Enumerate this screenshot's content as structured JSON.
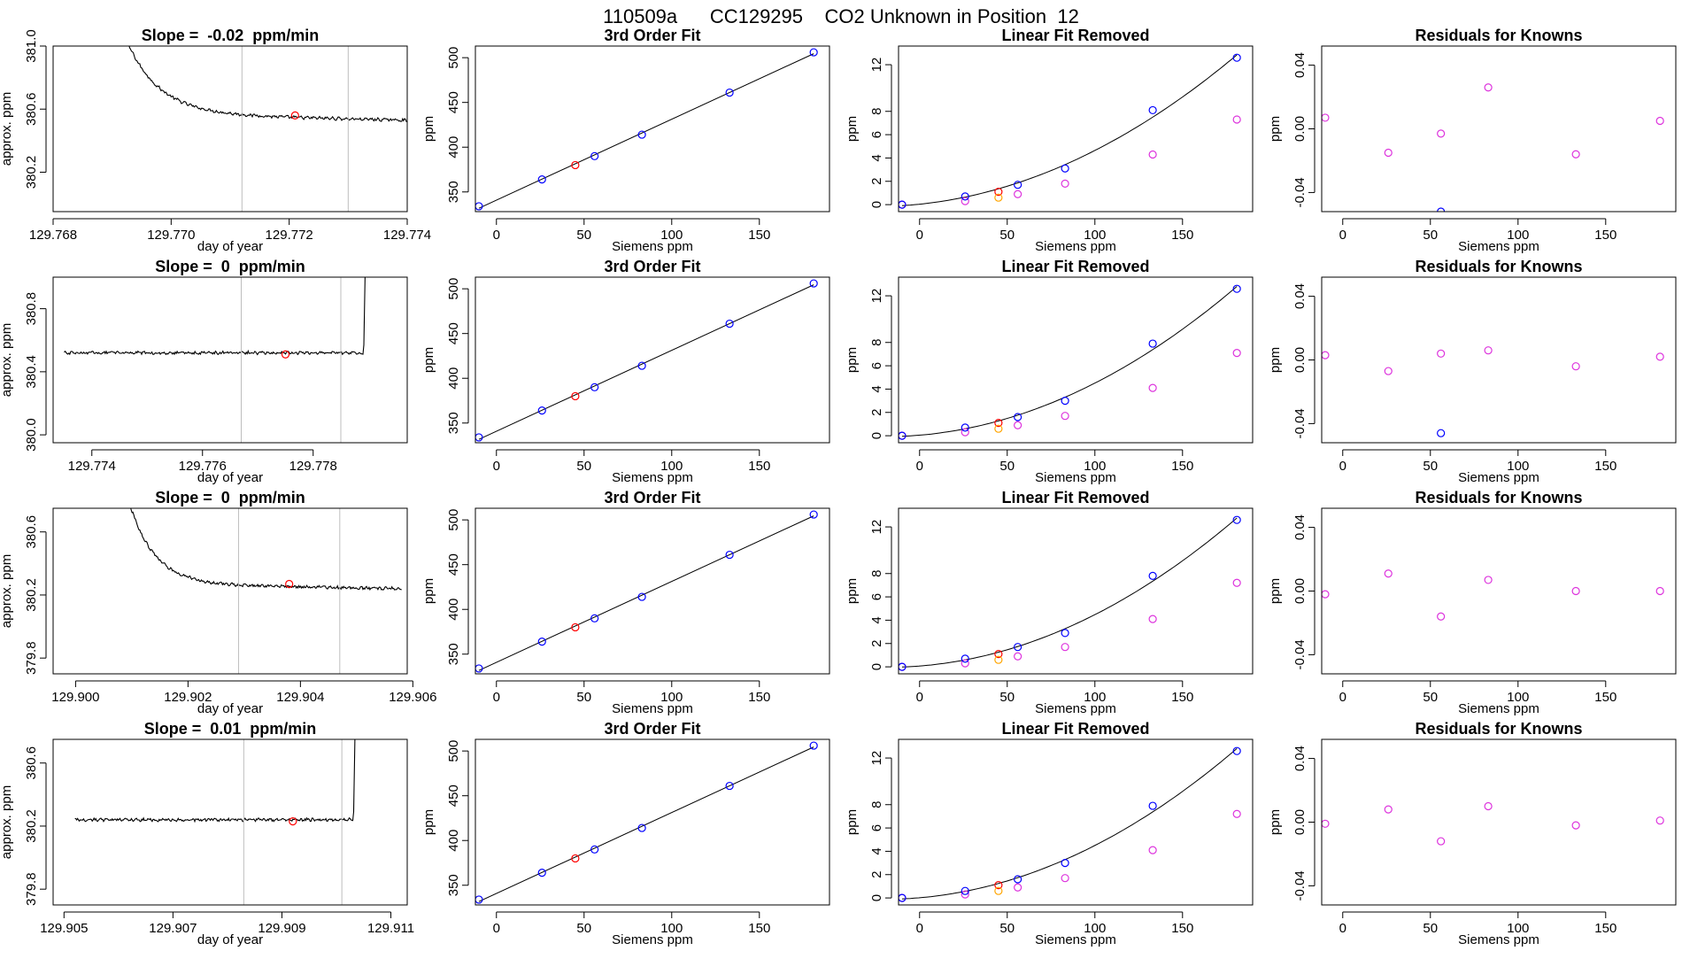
{
  "page_title": "110509a      CC129295    CO2 Unknown in Position  12",
  "colors": {
    "axis": "#000000",
    "trace": "#000000",
    "vline": "#bebebe",
    "blue": "#0000ff",
    "red": "#ff0000",
    "orange": "#ffa500",
    "magenta": "#dd33dd",
    "fit": "#000000"
  },
  "chart_data": [
    {
      "type": "line",
      "kind": "trace",
      "title": "Slope =  -0.02  ppm/min",
      "xlabel": "day of year",
      "ylabel": "approx. ppm",
      "xlim": [
        129.768,
        129.774
      ],
      "ylim": [
        379.95,
        381.0
      ],
      "xticks": [
        129.768,
        129.77,
        129.772,
        129.774
      ],
      "xtick_labels": [
        "129.768",
        "129.770",
        "129.772",
        "129.774"
      ],
      "yticks": [
        380.2,
        380.6,
        381.0
      ],
      "ytick_labels": [
        "380.2",
        "380.6",
        "381.0"
      ],
      "trace": {
        "x_start": 129.769,
        "x_end": 129.774,
        "decay_from": 381.3,
        "level": 380.57,
        "tau": 0.00055,
        "end_level": 380.53,
        "noise": 0.008,
        "spike_to": null
      },
      "vlines": [
        129.7712,
        129.773
      ],
      "marker": {
        "x": 129.7721,
        "y": 380.56
      }
    },
    {
      "type": "scatter",
      "kind": "fit3",
      "title": "3rd Order Fit",
      "xlabel": "Siemens ppm",
      "ylabel": "ppm",
      "xlim": [
        -12,
        190
      ],
      "ylim": [
        328,
        513
      ],
      "xticks": [
        0,
        50,
        100,
        150
      ],
      "yticks": [
        350,
        400,
        450,
        500
      ],
      "knowns": {
        "x": [
          -10,
          26,
          56,
          83,
          133,
          181
        ],
        "y": [
          334,
          364,
          390,
          414,
          461,
          506
        ]
      },
      "unknown": {
        "x": 45,
        "y": 380
      }
    },
    {
      "type": "scatter",
      "kind": "linfit",
      "title": "Linear Fit Removed",
      "xlabel": "Siemens ppm",
      "ylabel": "ppm",
      "xlim": [
        -12,
        190
      ],
      "ylim": [
        -0.6,
        13.6
      ],
      "xticks": [
        0,
        50,
        100,
        150
      ],
      "yticks": [
        0,
        2,
        4,
        6,
        8,
        12
      ],
      "knowns": {
        "x": [
          -10,
          26,
          56,
          83,
          133,
          181
        ],
        "y": [
          0.0,
          0.7,
          1.7,
          3.1,
          8.1,
          12.6
        ]
      },
      "removed": {
        "x": [
          -10,
          26,
          56,
          83,
          133,
          181
        ],
        "y": [
          0.0,
          0.3,
          0.9,
          1.8,
          4.3,
          7.3
        ]
      },
      "unknown": {
        "x": 45,
        "y": 1.1
      },
      "unknown_removed": {
        "x": 45,
        "y": 0.6
      }
    },
    {
      "type": "scatter",
      "kind": "resid",
      "title": "Residuals for Knowns",
      "xlabel": "Siemens ppm",
      "ylabel": "ppm",
      "xlim": [
        -12,
        190
      ],
      "ylim": [
        -0.052,
        0.052
      ],
      "xticks": [
        0,
        50,
        100,
        150
      ],
      "yticks": [
        -0.04,
        0.0,
        0.04
      ],
      "ytick_labels": [
        "-0.04",
        "0.00",
        "0.04"
      ],
      "resid": {
        "x": [
          -10,
          26,
          56,
          83,
          133,
          181
        ],
        "y": [
          0.007,
          -0.015,
          -0.003,
          0.026,
          -0.016,
          0.005
        ]
      },
      "resid_blue": {
        "x": [
          56
        ],
        "y": [
          -0.052
        ]
      }
    },
    {
      "type": "line",
      "kind": "trace",
      "title": "Slope =  0  ppm/min",
      "xlabel": "day of year",
      "ylabel": "approx. ppm",
      "xlim": [
        129.7733,
        129.7797
      ],
      "ylim": [
        379.95,
        381.0
      ],
      "xticks": [
        129.774,
        129.776,
        129.778
      ],
      "xtick_labels": [
        "129.774",
        "129.776",
        "129.778"
      ],
      "yticks": [
        380.0,
        380.4,
        380.8
      ],
      "ytick_labels": [
        "380.0",
        "380.4",
        "380.8"
      ],
      "trace": {
        "x_start": 129.7735,
        "x_end": 129.7789,
        "decay_from": null,
        "level": 380.52,
        "tau": 0.0005,
        "end_level": 380.52,
        "noise": 0.008,
        "spike_to": 381.2
      },
      "vlines": [
        129.7767,
        129.7785
      ],
      "marker": {
        "x": 129.7775,
        "y": 380.51
      }
    },
    {
      "type": "scatter",
      "kind": "fit3",
      "title": "3rd Order Fit",
      "xlabel": "Siemens ppm",
      "ylabel": "ppm",
      "xlim": [
        -12,
        190
      ],
      "ylim": [
        328,
        513
      ],
      "xticks": [
        0,
        50,
        100,
        150
      ],
      "yticks": [
        350,
        400,
        450,
        500
      ],
      "knowns": {
        "x": [
          -10,
          26,
          56,
          83,
          133,
          181
        ],
        "y": [
          334,
          364,
          390,
          414,
          461,
          506
        ]
      },
      "unknown": {
        "x": 45,
        "y": 380
      }
    },
    {
      "type": "scatter",
      "kind": "linfit",
      "title": "Linear Fit Removed",
      "xlabel": "Siemens ppm",
      "ylabel": "ppm",
      "xlim": [
        -12,
        190
      ],
      "ylim": [
        -0.6,
        13.6
      ],
      "xticks": [
        0,
        50,
        100,
        150
      ],
      "yticks": [
        0,
        2,
        4,
        6,
        8,
        12
      ],
      "knowns": {
        "x": [
          -10,
          26,
          56,
          83,
          133,
          181
        ],
        "y": [
          0.0,
          0.7,
          1.6,
          3.0,
          7.9,
          12.6
        ]
      },
      "removed": {
        "x": [
          -10,
          26,
          56,
          83,
          133,
          181
        ],
        "y": [
          0.0,
          0.3,
          0.9,
          1.7,
          4.1,
          7.1
        ]
      },
      "unknown": {
        "x": 45,
        "y": 1.1
      },
      "unknown_removed": {
        "x": 45,
        "y": 0.6
      }
    },
    {
      "type": "scatter",
      "kind": "resid",
      "title": "Residuals for Knowns",
      "xlabel": "Siemens ppm",
      "ylabel": "ppm",
      "xlim": [
        -12,
        190
      ],
      "ylim": [
        -0.052,
        0.052
      ],
      "xticks": [
        0,
        50,
        100,
        150
      ],
      "yticks": [
        -0.04,
        0.0,
        0.04
      ],
      "ytick_labels": [
        "-0.04",
        "0.00",
        "0.04"
      ],
      "resid": {
        "x": [
          -10,
          26,
          56,
          83,
          133,
          181
        ],
        "y": [
          0.003,
          -0.007,
          0.004,
          0.006,
          -0.004,
          0.002
        ]
      },
      "resid_blue": {
        "x": [
          56
        ],
        "y": [
          -0.046
        ]
      }
    },
    {
      "type": "line",
      "kind": "trace",
      "title": "Slope =  0  ppm/min",
      "xlabel": "day of year",
      "ylabel": "approx. ppm",
      "xlim": [
        129.8996,
        129.9059
      ],
      "ylim": [
        379.7,
        380.75
      ],
      "xticks": [
        129.9,
        129.902,
        129.904,
        129.906
      ],
      "xtick_labels": [
        "129.900",
        "129.902",
        "129.904",
        "129.906"
      ],
      "yticks": [
        379.8,
        380.2,
        380.6
      ],
      "ytick_labels": [
        "379.8",
        "380.2",
        "380.6"
      ],
      "trace": {
        "x_start": 129.9008,
        "x_end": 129.9058,
        "decay_from": 381.0,
        "level": 380.27,
        "tau": 0.00045,
        "end_level": 380.24,
        "noise": 0.008,
        "spike_to": null
      },
      "vlines": [
        129.9029,
        129.9047
      ],
      "marker": {
        "x": 129.9038,
        "y": 380.27
      }
    },
    {
      "type": "scatter",
      "kind": "fit3",
      "title": "3rd Order Fit",
      "xlabel": "Siemens ppm",
      "ylabel": "ppm",
      "xlim": [
        -12,
        190
      ],
      "ylim": [
        328,
        513
      ],
      "xticks": [
        0,
        50,
        100,
        150
      ],
      "yticks": [
        350,
        400,
        450,
        500
      ],
      "knowns": {
        "x": [
          -10,
          26,
          56,
          83,
          133,
          181
        ],
        "y": [
          334,
          364,
          390,
          414,
          461,
          506
        ]
      },
      "unknown": {
        "x": 45,
        "y": 380
      }
    },
    {
      "type": "scatter",
      "kind": "linfit",
      "title": "Linear Fit Removed",
      "xlabel": "Siemens ppm",
      "ylabel": "ppm",
      "xlim": [
        -12,
        190
      ],
      "ylim": [
        -0.6,
        13.6
      ],
      "xticks": [
        0,
        50,
        100,
        150
      ],
      "yticks": [
        0,
        2,
        4,
        6,
        8,
        12
      ],
      "knowns": {
        "x": [
          -10,
          26,
          56,
          83,
          133,
          181
        ],
        "y": [
          0.0,
          0.7,
          1.7,
          2.9,
          7.8,
          12.6
        ]
      },
      "removed": {
        "x": [
          -10,
          26,
          56,
          83,
          133,
          181
        ],
        "y": [
          0.0,
          0.3,
          0.9,
          1.7,
          4.1,
          7.2
        ]
      },
      "unknown": {
        "x": 45,
        "y": 1.1
      },
      "unknown_removed": {
        "x": 45,
        "y": 0.6
      }
    },
    {
      "type": "scatter",
      "kind": "resid",
      "title": "Residuals for Knowns",
      "xlabel": "Siemens ppm",
      "ylabel": "ppm",
      "xlim": [
        -12,
        190
      ],
      "ylim": [
        -0.052,
        0.052
      ],
      "xticks": [
        0,
        50,
        100,
        150
      ],
      "yticks": [
        -0.04,
        0.0,
        0.04
      ],
      "ytick_labels": [
        "-0.04",
        "0.00",
        "0.04"
      ],
      "resid": {
        "x": [
          -10,
          26,
          56,
          83,
          133,
          181
        ],
        "y": [
          -0.002,
          0.011,
          -0.016,
          0.007,
          0.0,
          0.0
        ]
      },
      "resid_blue": {
        "x": [],
        "y": []
      }
    },
    {
      "type": "line",
      "kind": "trace",
      "title": "Slope =  0.01  ppm/min",
      "xlabel": "day of year",
      "ylabel": "approx. ppm",
      "xlim": [
        129.9048,
        129.9113
      ],
      "ylim": [
        379.7,
        380.75
      ],
      "xticks": [
        129.905,
        129.907,
        129.909,
        129.911
      ],
      "xtick_labels": [
        "129.905",
        "129.907",
        "129.909",
        "129.911"
      ],
      "yticks": [
        379.8,
        380.2,
        380.6
      ],
      "ytick_labels": [
        "379.8",
        "380.2",
        "380.6"
      ],
      "trace": {
        "x_start": 129.9052,
        "x_end": 129.9103,
        "decay_from": null,
        "level": 380.24,
        "tau": 0.0005,
        "end_level": 380.24,
        "noise": 0.008,
        "spike_to": 380.95
      },
      "vlines": [
        129.9083,
        129.9101
      ],
      "marker": {
        "x": 129.9092,
        "y": 380.23
      }
    },
    {
      "type": "scatter",
      "kind": "fit3",
      "title": "3rd Order Fit",
      "xlabel": "Siemens ppm",
      "ylabel": "ppm",
      "xlim": [
        -12,
        190
      ],
      "ylim": [
        328,
        513
      ],
      "xticks": [
        0,
        50,
        100,
        150
      ],
      "yticks": [
        350,
        400,
        450,
        500
      ],
      "knowns": {
        "x": [
          -10,
          26,
          56,
          83,
          133,
          181
        ],
        "y": [
          334,
          364,
          390,
          414,
          461,
          506
        ]
      },
      "unknown": {
        "x": 45,
        "y": 380
      }
    },
    {
      "type": "scatter",
      "kind": "linfit",
      "title": "Linear Fit Removed",
      "xlabel": "Siemens ppm",
      "ylabel": "ppm",
      "xlim": [
        -12,
        190
      ],
      "ylim": [
        -0.6,
        13.6
      ],
      "xticks": [
        0,
        50,
        100,
        150
      ],
      "yticks": [
        0,
        2,
        4,
        6,
        8,
        12
      ],
      "knowns": {
        "x": [
          -10,
          26,
          56,
          83,
          133,
          181
        ],
        "y": [
          0.0,
          0.6,
          1.6,
          3.0,
          7.9,
          12.6
        ]
      },
      "removed": {
        "x": [
          -10,
          26,
          56,
          83,
          133,
          181
        ],
        "y": [
          0.0,
          0.3,
          0.9,
          1.7,
          4.1,
          7.2
        ]
      },
      "unknown": {
        "x": 45,
        "y": 1.1
      },
      "unknown_removed": {
        "x": 45,
        "y": 0.6
      }
    },
    {
      "type": "scatter",
      "kind": "resid",
      "title": "Residuals for Knowns",
      "xlabel": "Siemens ppm",
      "ylabel": "ppm",
      "xlim": [
        -12,
        190
      ],
      "ylim": [
        -0.052,
        0.052
      ],
      "xticks": [
        0,
        50,
        100,
        150
      ],
      "yticks": [
        -0.04,
        0.0,
        0.04
      ],
      "ytick_labels": [
        "-0.04",
        "0.00",
        "0.04"
      ],
      "resid": {
        "x": [
          -10,
          26,
          56,
          83,
          133,
          181
        ],
        "y": [
          -0.001,
          0.008,
          -0.012,
          0.01,
          -0.002,
          0.001
        ]
      },
      "resid_blue": {
        "x": [],
        "y": []
      }
    }
  ]
}
